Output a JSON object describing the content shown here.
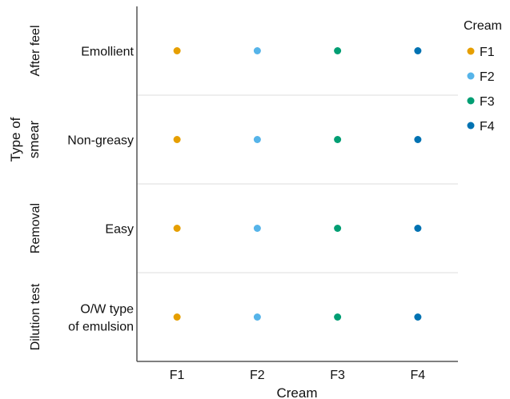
{
  "chart_data": {
    "type": "scatter",
    "xlabel": "Cream",
    "ylabel": "Type of smear",
    "x_categories": [
      "F1",
      "F2",
      "F3",
      "F4"
    ],
    "facets": [
      {
        "label": "After feel",
        "y_categories": [
          "Emollient"
        ]
      },
      {
        "label": "Removal",
        "y_categories": [
          "Non-greasy"
        ]
      },
      {
        "label": "Removal",
        "y_categories": [
          "Easy"
        ]
      },
      {
        "label": "Dilution test",
        "y_categories": [
          "O/W type of emulsion"
        ]
      }
    ],
    "strip_labels": [
      "After feel",
      "Removal",
      "Dilution test"
    ],
    "points": [
      {
        "facet": 0,
        "y": "Emollient",
        "x": "F1",
        "series": "F1"
      },
      {
        "facet": 0,
        "y": "Emollient",
        "x": "F2",
        "series": "F2"
      },
      {
        "facet": 0,
        "y": "Emollient",
        "x": "F3",
        "series": "F3"
      },
      {
        "facet": 0,
        "y": "Emollient",
        "x": "F4",
        "series": "F4"
      },
      {
        "facet": 1,
        "y": "Non-greasy",
        "x": "F1",
        "series": "F1"
      },
      {
        "facet": 1,
        "y": "Non-greasy",
        "x": "F2",
        "series": "F2"
      },
      {
        "facet": 1,
        "y": "Non-greasy",
        "x": "F3",
        "series": "F3"
      },
      {
        "facet": 1,
        "y": "Non-greasy",
        "x": "F4",
        "series": "F4"
      },
      {
        "facet": 2,
        "y": "Easy",
        "x": "F1",
        "series": "F1"
      },
      {
        "facet": 2,
        "y": "Easy",
        "x": "F2",
        "series": "F2"
      },
      {
        "facet": 2,
        "y": "Easy",
        "x": "F3",
        "series": "F3"
      },
      {
        "facet": 2,
        "y": "Easy",
        "x": "F4",
        "series": "F4"
      },
      {
        "facet": 3,
        "y": "O/W type of emulsion",
        "x": "F1",
        "series": "F1"
      },
      {
        "facet": 3,
        "y": "O/W type of emulsion",
        "x": "F2",
        "series": "F2"
      },
      {
        "facet": 3,
        "y": "O/W type of emulsion",
        "x": "F3",
        "series": "F3"
      },
      {
        "facet": 3,
        "y": "O/W type of emulsion",
        "x": "F4",
        "series": "F4"
      }
    ],
    "legend": {
      "title": "Cream",
      "position": "right",
      "entries": [
        {
          "name": "F1",
          "color": "#E69F00"
        },
        {
          "name": "F2",
          "color": "#56B4E9"
        },
        {
          "name": "F3",
          "color": "#009E73"
        },
        {
          "name": "F4",
          "color": "#0072B2"
        }
      ]
    },
    "grid": false
  }
}
